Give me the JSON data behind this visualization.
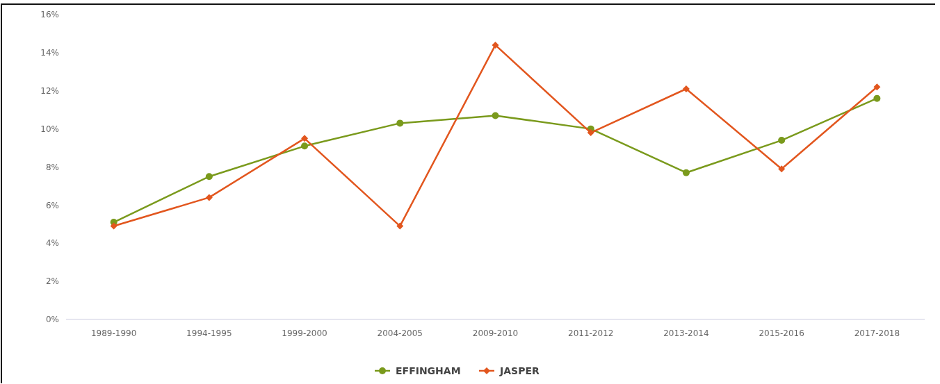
{
  "chart_data": {
    "type": "line",
    "categories": [
      "1989-1990",
      "1994-1995",
      "1999-2000",
      "2004-2005",
      "2009-2010",
      "2011-2012",
      "2013-2014",
      "2015-2016",
      "2017-2018"
    ],
    "series": [
      {
        "name": "EFFINGHAM",
        "color": "#7a9a1c",
        "marker": "circle",
        "values": [
          5.1,
          7.5,
          9.1,
          10.3,
          10.7,
          10.0,
          7.7,
          9.4,
          11.6
        ]
      },
      {
        "name": "JASPER",
        "color": "#e2561e",
        "marker": "diamond",
        "values": [
          4.9,
          6.4,
          9.5,
          4.9,
          14.4,
          9.8,
          12.1,
          7.9,
          12.2
        ]
      }
    ],
    "ylim": [
      0,
      16
    ],
    "yticks": [
      {
        "value": 0,
        "label": "0%"
      },
      {
        "value": 2,
        "label": "2%"
      },
      {
        "value": 4,
        "label": "4%"
      },
      {
        "value": 6,
        "label": "6%"
      },
      {
        "value": 8,
        "label": "8%"
      },
      {
        "value": 10,
        "label": "10%"
      },
      {
        "value": 12,
        "label": "12%"
      },
      {
        "value": 14,
        "label": "14%"
      },
      {
        "value": 16,
        "label": "16%"
      }
    ],
    "grid": false,
    "legend": "bottom",
    "line_style": "solid"
  }
}
